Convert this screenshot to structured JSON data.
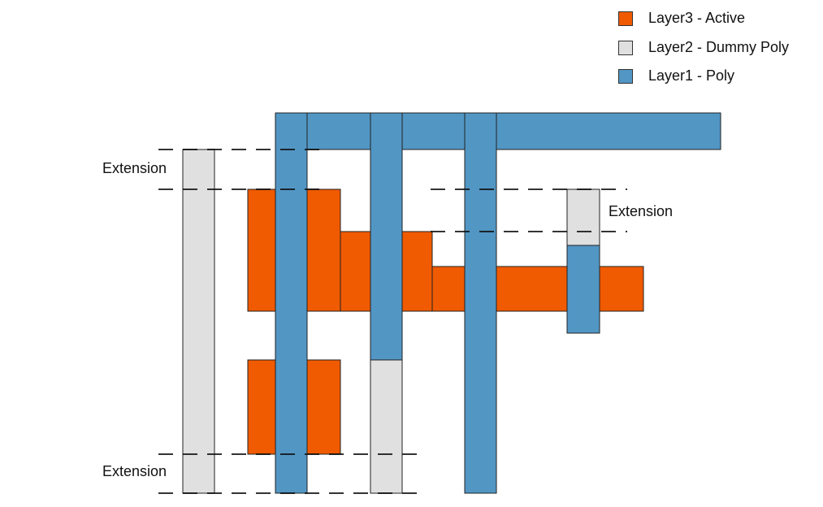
{
  "legend": [
    {
      "label": "Layer3 - Active",
      "color": "#f05a00"
    },
    {
      "label": "Layer2 - Dummy Poly",
      "color": "#e0e0e0"
    },
    {
      "label": "Layer1 - Poly",
      "color": "#5296c4"
    }
  ],
  "annotations": {
    "left_top": "Extension",
    "right": "Extension",
    "left_bottom": "Extension"
  }
}
